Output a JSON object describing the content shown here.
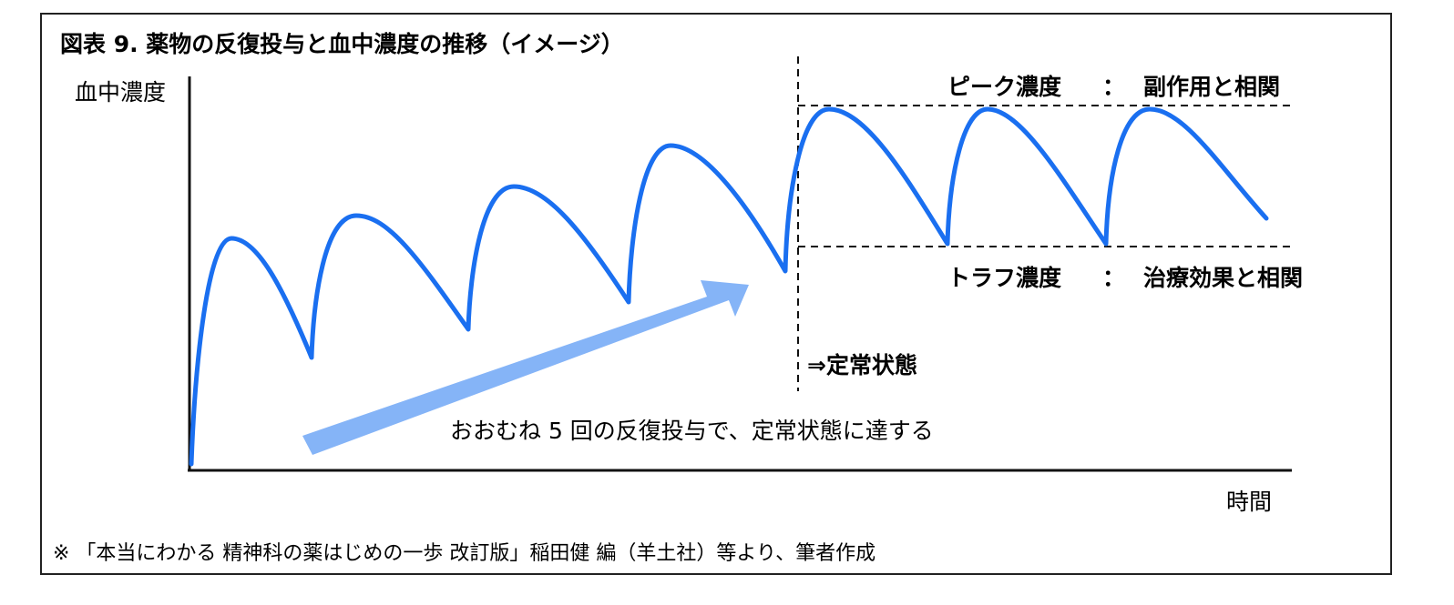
{
  "title": "図表 9.  薬物の反復投与と血中濃度の推移（イメージ）",
  "y_axis_label": "血中濃度",
  "x_axis_label": "時間",
  "peak": {
    "label": "ピーク濃度",
    "separator": "：",
    "meaning": "副作用と相関"
  },
  "trough": {
    "label": "トラフ濃度",
    "separator": "：",
    "meaning": "治療効果と相関"
  },
  "steady_state_label": "⇒定常状態",
  "arrow_caption": "おおむね 5 回の反復投与で、定常状態に達する",
  "source_note": "※  「本当にわかる  精神科の薬はじめの一歩  改訂版」稲田健  編（羊土社）等より、筆者作成",
  "colors": {
    "curve": "#1a6ff0",
    "arrow": "#85b4f7",
    "axis": "#111111",
    "guide": "#111111"
  }
}
